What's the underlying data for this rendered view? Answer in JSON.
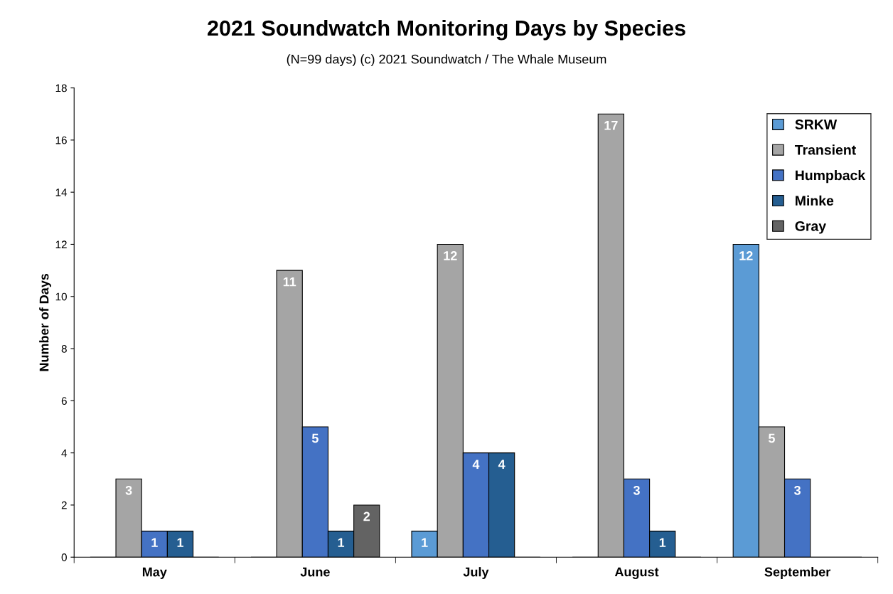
{
  "chart_data": {
    "type": "bar",
    "title": "2021 Soundwatch Monitoring Days by Species",
    "subtitle": "(N=99 days) (c) 2021 Soundwatch / The Whale Museum",
    "ylabel": "Number of Days",
    "categories": [
      "May",
      "June",
      "July",
      "August",
      "September"
    ],
    "series": [
      {
        "name": "SRKW",
        "color": "#5b9bd5",
        "values": [
          0,
          0,
          1,
          0,
          12
        ],
        "value_labels": [
          null,
          null,
          "1",
          null,
          "12"
        ]
      },
      {
        "name": "Transient",
        "color": "#a5a5a5",
        "values": [
          3,
          11,
          12,
          17,
          5
        ],
        "value_labels": [
          "3",
          "11",
          "12",
          "17",
          "5"
        ]
      },
      {
        "name": "Humpback",
        "color": "#4472c4",
        "values": [
          1,
          5,
          4,
          3,
          3
        ],
        "value_labels": [
          "1",
          "5",
          "4",
          "3",
          "3"
        ]
      },
      {
        "name": "Minke",
        "color": "#255e91",
        "values": [
          1,
          1,
          4,
          1,
          0
        ],
        "value_labels": [
          "1",
          "1",
          "4",
          "1",
          null
        ]
      },
      {
        "name": "Gray",
        "color": "#636363",
        "values": [
          0,
          2,
          0,
          0,
          0
        ],
        "value_labels": [
          null,
          "2",
          null,
          null,
          null
        ]
      }
    ],
    "ylim": [
      0,
      18
    ],
    "yticks": [
      0,
      2,
      4,
      6,
      8,
      10,
      12,
      14,
      16,
      18
    ],
    "grid": false,
    "legend": "top right"
  }
}
